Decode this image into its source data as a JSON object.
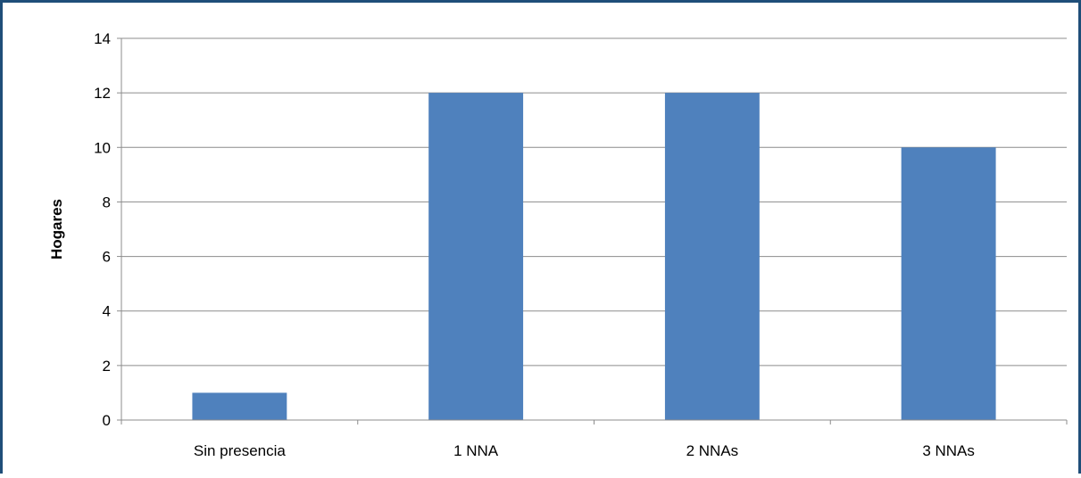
{
  "chart_data": {
    "type": "bar",
    "title": "",
    "xlabel": "",
    "ylabel": "Hogares",
    "categories": [
      "Sin presencia",
      "1 NNA",
      "2 NNAs",
      "3 NNAs"
    ],
    "values": [
      1,
      12,
      12,
      10
    ],
    "ylim": [
      0,
      14
    ],
    "yticks": [
      "0",
      "2",
      "4",
      "6",
      "8",
      "10",
      "12",
      "14"
    ],
    "grid": true,
    "legend": "none",
    "bar_color": "#4f81bd",
    "gridline_color": "#8c8c8c",
    "frame_color": "#1f4e79"
  }
}
